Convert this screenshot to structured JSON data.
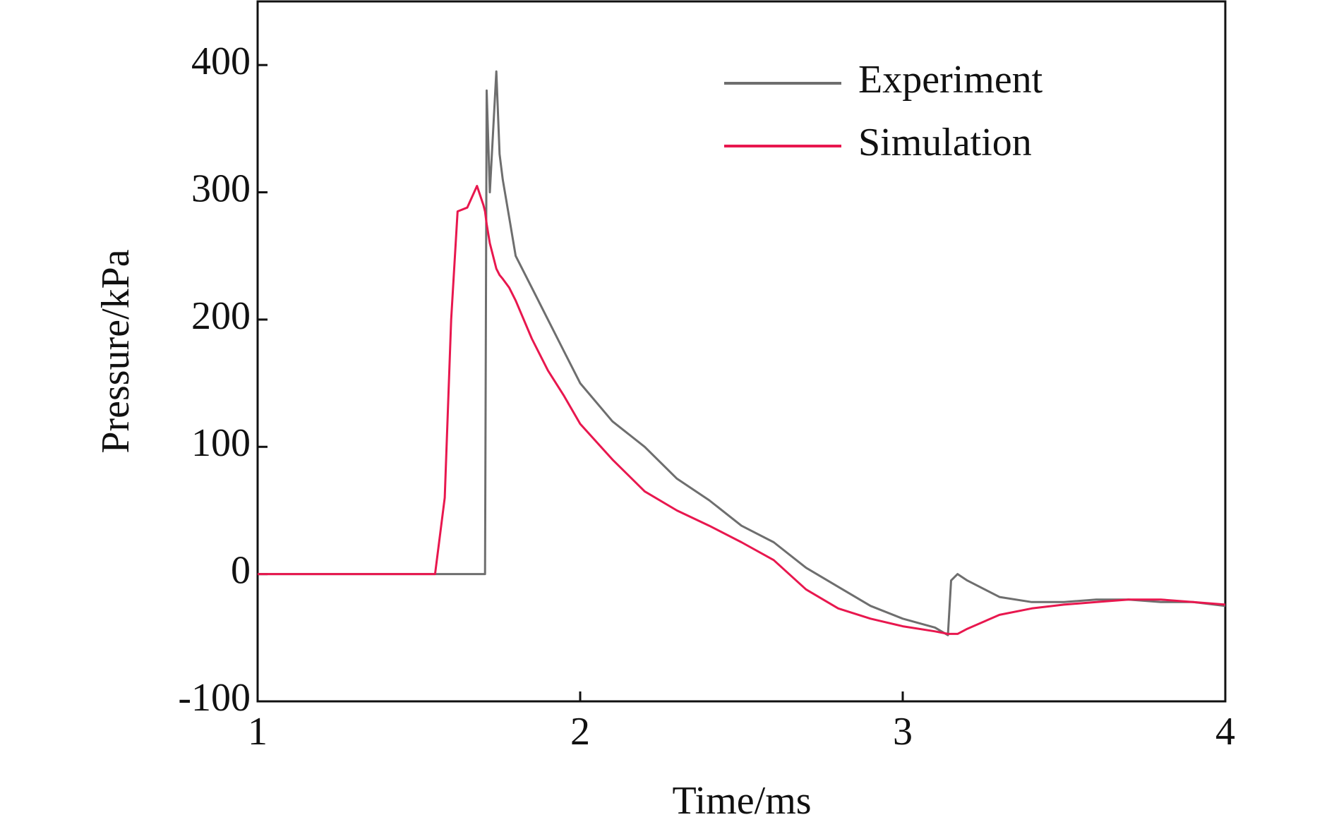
{
  "chart_data": {
    "type": "line",
    "x_label": "Time/ms",
    "y_label": "Pressure/kPa",
    "x": [
      1,
      1.2,
      1.4,
      1.55,
      1.58,
      1.6,
      1.62,
      1.65,
      1.68,
      1.7,
      1.705,
      1.71,
      1.72,
      1.74,
      1.75,
      1.76,
      1.78,
      1.8,
      1.85,
      1.9,
      1.95,
      2.0,
      2.1,
      2.2,
      2.3,
      2.4,
      2.5,
      2.6,
      2.7,
      2.8,
      2.9,
      3.0,
      3.1,
      3.14,
      3.15,
      3.17,
      3.2,
      3.3,
      3.4,
      3.5,
      3.6,
      3.7,
      3.8,
      3.9,
      4.0
    ],
    "series": [
      {
        "name": "Experiment",
        "color": "#6e6e6e",
        "values": [
          0,
          0,
          0,
          0,
          0,
          0,
          0,
          0,
          0,
          0,
          0,
          380,
          300,
          395,
          330,
          310,
          280,
          250,
          225,
          200,
          175,
          150,
          120,
          100,
          75,
          58,
          38,
          25,
          5,
          -10,
          -25,
          -35,
          -42,
          -48,
          -5,
          0,
          -5,
          -18,
          -22,
          -22,
          -20,
          -20,
          -22,
          -22,
          -25
        ]
      },
      {
        "name": "Simulation",
        "color": "#e8174e",
        "values": [
          0,
          0,
          0,
          0,
          60,
          200,
          285,
          288,
          305,
          290,
          285,
          275,
          260,
          240,
          235,
          232,
          225,
          215,
          185,
          160,
          140,
          118,
          90,
          65,
          50,
          38,
          25,
          11,
          -12,
          -27,
          -35,
          -41,
          -45,
          -47,
          -47,
          -47,
          -43,
          -32,
          -27,
          -24,
          -22,
          -20,
          -20,
          -22,
          -24
        ]
      }
    ],
    "xlim": [
      1,
      4
    ],
    "xticks": [
      1,
      2,
      3,
      4
    ],
    "ylim": [
      -100,
      450
    ],
    "yticks": [
      -100,
      0,
      100,
      200,
      300,
      400
    ],
    "legend": "upper right"
  }
}
